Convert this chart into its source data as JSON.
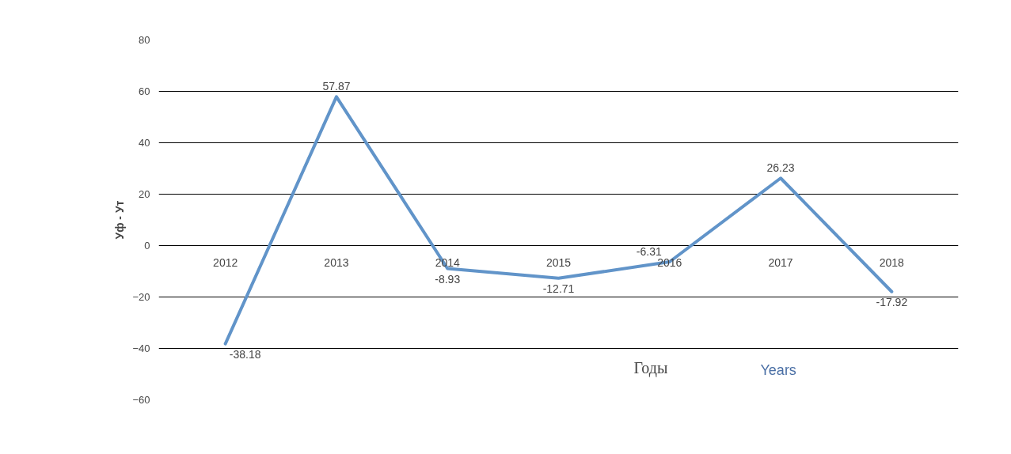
{
  "chart_data": {
    "type": "line",
    "xlabel": "Годы",
    "ylabel": "Уф - Ут",
    "annotations": [
      "Years"
    ],
    "categories": [
      "2012",
      "2013",
      "2014",
      "2015",
      "2016",
      "2017",
      "2018"
    ],
    "series": [
      {
        "color": "#6194c9",
        "values": [
          -38.18,
          57.87,
          -8.93,
          -12.71,
          -6.31,
          26.23,
          -17.92
        ]
      }
    ],
    "ylim": [
      -60,
      80
    ],
    "yticks": [
      -60,
      -40,
      -20,
      0,
      20,
      40,
      60,
      80
    ],
    "grid": "y",
    "marker": "none",
    "line_style": "solid",
    "data_labels": true
  }
}
